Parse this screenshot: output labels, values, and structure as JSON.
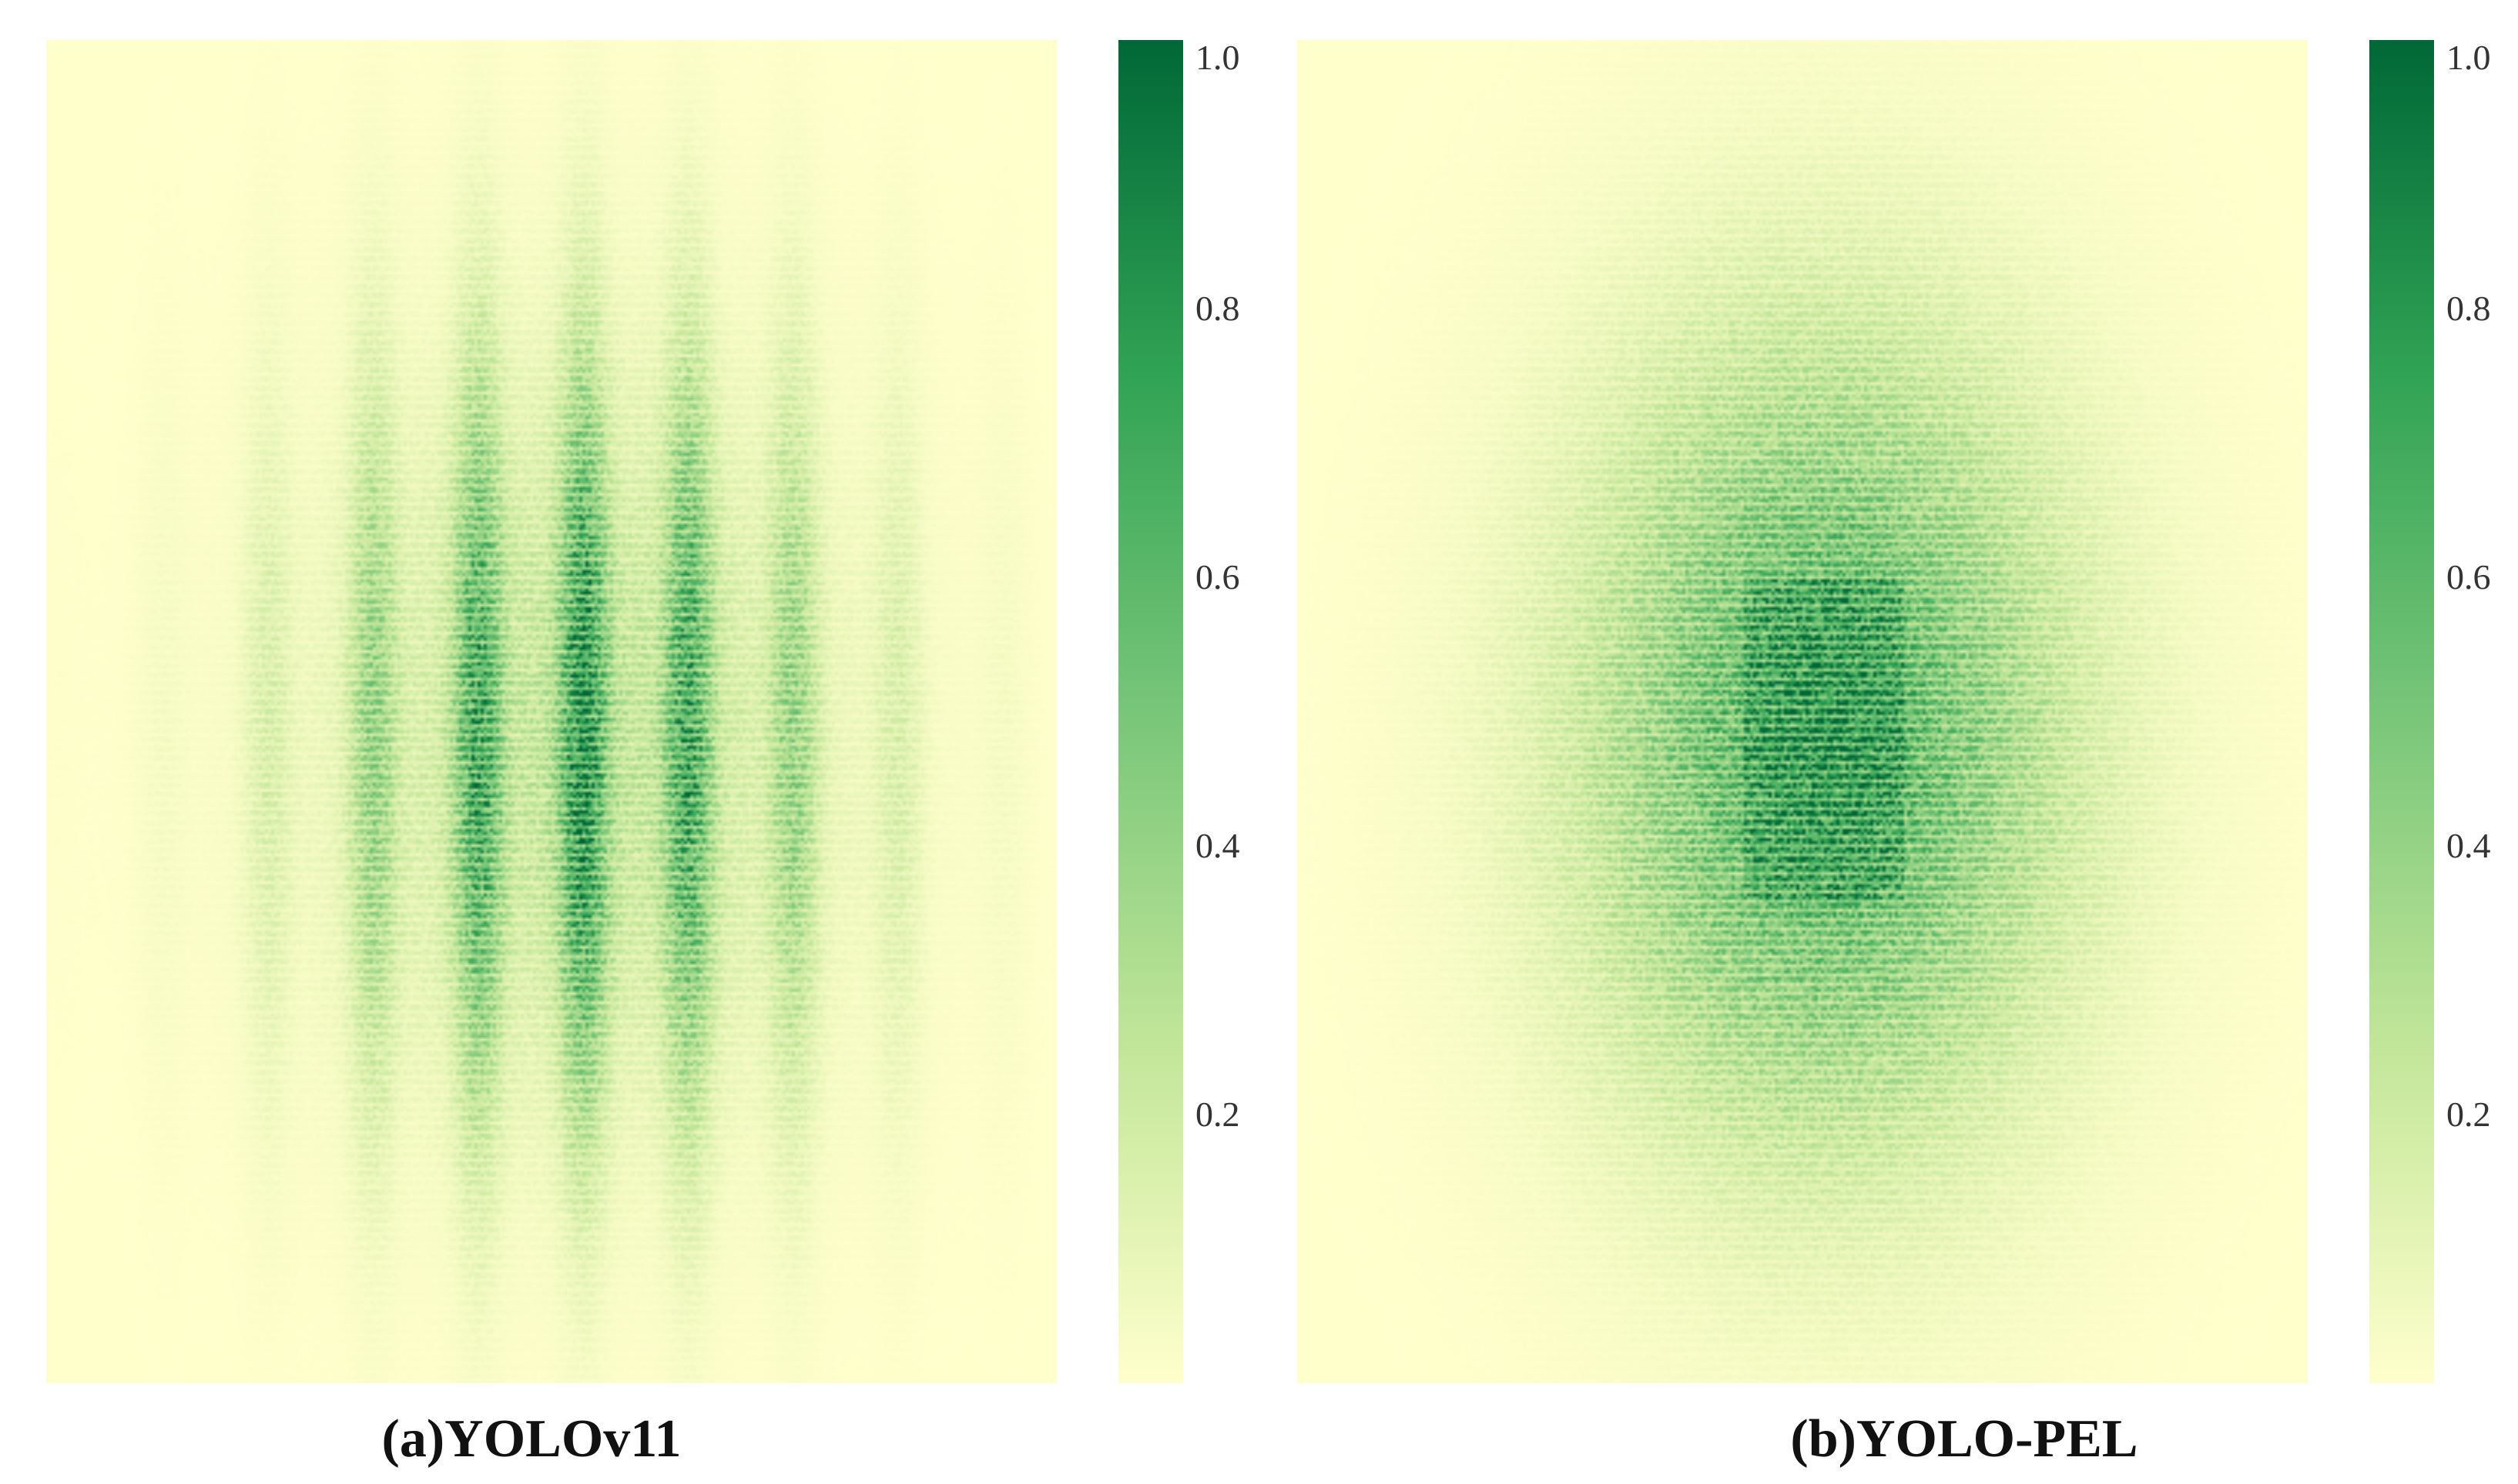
{
  "chart_data": [
    {
      "type": "heatmap",
      "panel_caption": "(a)YOLOv11",
      "colormap": "YlGn",
      "colors": [
        "#ffffcc",
        "#c2e699",
        "#78c679",
        "#31a354",
        "#006837"
      ],
      "vmin": 0.0,
      "vmax": 1.0,
      "colorbar_ticks": [
        "0.2",
        "0.4",
        "0.6",
        "0.8",
        "1.0"
      ],
      "colorbar_tick_values": [
        0.2,
        0.4,
        0.6,
        0.8,
        1.0
      ],
      "distribution": {
        "center_x": 0.53,
        "center_y": 0.52,
        "peak_value": 0.78,
        "spread_x": 0.17,
        "spread_y": 0.19,
        "column_bands": true
      }
    },
    {
      "type": "heatmap",
      "panel_caption": "(b)YOLO-PEL",
      "colormap": "YlGn",
      "colors": [
        "#ffffcc",
        "#c2e699",
        "#78c679",
        "#31a354",
        "#006837"
      ],
      "vmin": 0.0,
      "vmax": 1.0,
      "colorbar_ticks": [
        "0.2",
        "0.4",
        "0.6",
        "0.8",
        "1.0"
      ],
      "colorbar_tick_values": [
        0.2,
        0.4,
        0.6,
        0.8,
        1.0
      ],
      "distribution": {
        "center_x": 0.52,
        "center_y": 0.52,
        "peak_value": 0.72,
        "spread_x": 0.16,
        "spread_y": 0.2,
        "column_bands": false
      }
    }
  ]
}
